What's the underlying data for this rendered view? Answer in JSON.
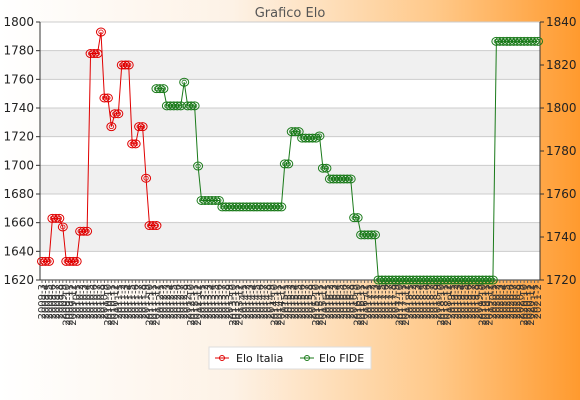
{
  "chart_data": {
    "type": "line",
    "title": "Grafico Elo",
    "grid": true,
    "legend_position": "bottom-center",
    "y_left": {
      "min": 1620,
      "max": 1800,
      "ticks": [
        1620,
        1640,
        1660,
        1680,
        1700,
        1720,
        1740,
        1760,
        1780,
        1800
      ]
    },
    "y_right": {
      "min": 1720,
      "max": 1840,
      "ticks": [
        1720,
        1740,
        1760,
        1780,
        1800,
        1820,
        1840
      ]
    },
    "x_count": 144,
    "series": [
      {
        "name": "Elo Italia",
        "axis": "left",
        "color": "#e00000",
        "points": [
          [
            0,
            1633
          ],
          [
            1,
            1633
          ],
          [
            2,
            1633
          ],
          [
            3,
            1663
          ],
          [
            4,
            1663
          ],
          [
            5,
            1663
          ],
          [
            6,
            1657
          ],
          [
            7,
            1633
          ],
          [
            8,
            1633
          ],
          [
            9,
            1633
          ],
          [
            10,
            1633
          ],
          [
            11,
            1654
          ],
          [
            12,
            1654
          ],
          [
            13,
            1654
          ],
          [
            14,
            1778
          ],
          [
            15,
            1778
          ],
          [
            16,
            1778
          ],
          [
            17,
            1793
          ],
          [
            18,
            1747
          ],
          [
            19,
            1747
          ],
          [
            20,
            1727
          ],
          [
            21,
            1736
          ],
          [
            22,
            1736
          ],
          [
            23,
            1770
          ],
          [
            24,
            1770
          ],
          [
            25,
            1770
          ],
          [
            26,
            1715
          ],
          [
            27,
            1715
          ],
          [
            28,
            1727
          ],
          [
            29,
            1727
          ],
          [
            30,
            1691
          ],
          [
            31,
            1658
          ],
          [
            32,
            1658
          ],
          [
            33,
            1658
          ]
        ]
      },
      {
        "name": "Elo FIDE",
        "axis": "right",
        "color": "#1a7a1a",
        "points": [
          [
            33,
            1809
          ],
          [
            34,
            1809
          ],
          [
            35,
            1809
          ],
          [
            36,
            1801
          ],
          [
            37,
            1801
          ],
          [
            38,
            1801
          ],
          [
            39,
            1801
          ],
          [
            40,
            1801
          ],
          [
            41,
            1812
          ],
          [
            42,
            1801
          ],
          [
            43,
            1801
          ],
          [
            44,
            1801
          ],
          [
            45,
            1773
          ],
          [
            46,
            1757
          ],
          [
            47,
            1757
          ],
          [
            48,
            1757
          ],
          [
            49,
            1757
          ],
          [
            50,
            1757
          ],
          [
            51,
            1757
          ],
          [
            52,
            1754
          ],
          [
            53,
            1754
          ],
          [
            54,
            1754
          ],
          [
            55,
            1754
          ],
          [
            56,
            1754
          ],
          [
            57,
            1754
          ],
          [
            58,
            1754
          ],
          [
            59,
            1754
          ],
          [
            60,
            1754
          ],
          [
            61,
            1754
          ],
          [
            62,
            1754
          ],
          [
            63,
            1754
          ],
          [
            64,
            1754
          ],
          [
            65,
            1754
          ],
          [
            66,
            1754
          ],
          [
            67,
            1754
          ],
          [
            68,
            1754
          ],
          [
            69,
            1754
          ],
          [
            70,
            1774
          ],
          [
            71,
            1774
          ],
          [
            72,
            1789
          ],
          [
            73,
            1789
          ],
          [
            74,
            1789
          ],
          [
            75,
            1786
          ],
          [
            76,
            1786
          ],
          [
            77,
            1786
          ],
          [
            78,
            1786
          ],
          [
            79,
            1786
          ],
          [
            80,
            1787
          ],
          [
            81,
            1772
          ],
          [
            82,
            1772
          ],
          [
            83,
            1767
          ],
          [
            84,
            1767
          ],
          [
            85,
            1767
          ],
          [
            86,
            1767
          ],
          [
            87,
            1767
          ],
          [
            88,
            1767
          ],
          [
            89,
            1767
          ],
          [
            90,
            1749
          ],
          [
            91,
            1749
          ],
          [
            92,
            1741
          ],
          [
            93,
            1741
          ],
          [
            94,
            1741
          ],
          [
            95,
            1741
          ],
          [
            96,
            1741
          ],
          [
            97,
            1720
          ],
          [
            98,
            1720
          ],
          [
            99,
            1720
          ],
          [
            100,
            1720
          ],
          [
            101,
            1720
          ],
          [
            102,
            1720
          ],
          [
            103,
            1720
          ],
          [
            104,
            1720
          ],
          [
            105,
            1720
          ],
          [
            106,
            1720
          ],
          [
            107,
            1720
          ],
          [
            108,
            1720
          ],
          [
            109,
            1720
          ],
          [
            110,
            1720
          ],
          [
            111,
            1720
          ],
          [
            112,
            1720
          ],
          [
            113,
            1720
          ],
          [
            114,
            1720
          ],
          [
            115,
            1720
          ],
          [
            116,
            1720
          ],
          [
            117,
            1720
          ],
          [
            118,
            1720
          ],
          [
            119,
            1720
          ],
          [
            120,
            1720
          ],
          [
            121,
            1720
          ],
          [
            122,
            1720
          ],
          [
            123,
            1720
          ],
          [
            124,
            1720
          ],
          [
            125,
            1720
          ],
          [
            126,
            1720
          ],
          [
            127,
            1720
          ],
          [
            128,
            1720
          ],
          [
            129,
            1720
          ],
          [
            130,
            1720
          ],
          [
            131,
            1831
          ],
          [
            132,
            1831
          ],
          [
            133,
            1831
          ],
          [
            134,
            1831
          ],
          [
            135,
            1831
          ],
          [
            136,
            1831
          ],
          [
            137,
            1831
          ],
          [
            138,
            1831
          ],
          [
            139,
            1831
          ],
          [
            140,
            1831
          ],
          [
            141,
            1831
          ],
          [
            142,
            1831
          ],
          [
            143,
            1831
          ]
        ]
      }
    ],
    "x_tick_labels": [
      "2009-3",
      "2009-4",
      "2009-5",
      "2009-6",
      "2009-7",
      "2009-8",
      "2009-9",
      "2009-10",
      "2009-11",
      "2009-12",
      "2010-1",
      "2010-2",
      "2010-3",
      "2010-4",
      "2010-5",
      "2010-6",
      "2010-7",
      "2010-8",
      "2010-9",
      "2010-10",
      "2010-11",
      "2010-12",
      "2011-1",
      "2011-2",
      "2011-3",
      "2011-4",
      "2011-5",
      "2011-6",
      "2011-7",
      "2011-8",
      "2011-9",
      "2011-10",
      "2011-11",
      "2011-12",
      "2012-1",
      "2012-2",
      "2012-3",
      "2012-4",
      "2012-5",
      "2012-6",
      "2012-7",
      "2012-8",
      "2012-9",
      "2012-10",
      "2012-11",
      "2012-12",
      "2013-1",
      "2013-2",
      "2013-3",
      "2013-4",
      "2013-5",
      "2013-6",
      "2013-7",
      "2013-8",
      "2013-9",
      "2013-10",
      "2013-11",
      "2013-12",
      "2014-1",
      "2014-2",
      "2014-3",
      "2014-4",
      "2014-5",
      "2014-6",
      "2014-7",
      "2014-8",
      "2014-9",
      "2014-10",
      "2014-11",
      "2014-12",
      "2015-1",
      "2015-2",
      "2015-3",
      "2015-4",
      "2015-5",
      "2015-6",
      "2015-7",
      "2015-8",
      "2015-9",
      "2015-10",
      "2015-11",
      "2015-12",
      "2016-1",
      "2016-2",
      "2016-3",
      "2016-4",
      "2016-5",
      "2016-6",
      "2016-7",
      "2016-8",
      "2016-9",
      "2016-10",
      "2016-11",
      "2016-12",
      "2017-1",
      "2017-2",
      "2017-3",
      "2017-4",
      "2017-5",
      "2017-6",
      "2017-7",
      "2017-8",
      "2017-9",
      "2017-10",
      "2017-11",
      "2017-12",
      "2018-1",
      "2018-2",
      "2018-3",
      "2018-4",
      "2018-5",
      "2018-6",
      "2018-7",
      "2018-8",
      "2018-9",
      "2018-10",
      "2018-11",
      "2018-12",
      "2019-1",
      "2019-2",
      "2019-3",
      "2019-4",
      "2019-5",
      "2019-6",
      "2019-7",
      "2019-8",
      "2019-9",
      "2019-10",
      "2019-11",
      "2019-12",
      "2020-1",
      "2020-2",
      "2020-3",
      "2020-4",
      "2020-5",
      "2020-6",
      "2020-7",
      "2020-8",
      "2020-9",
      "2020-10",
      "2020-11",
      "2020-12",
      "2021-1",
      "2021-2"
    ]
  }
}
